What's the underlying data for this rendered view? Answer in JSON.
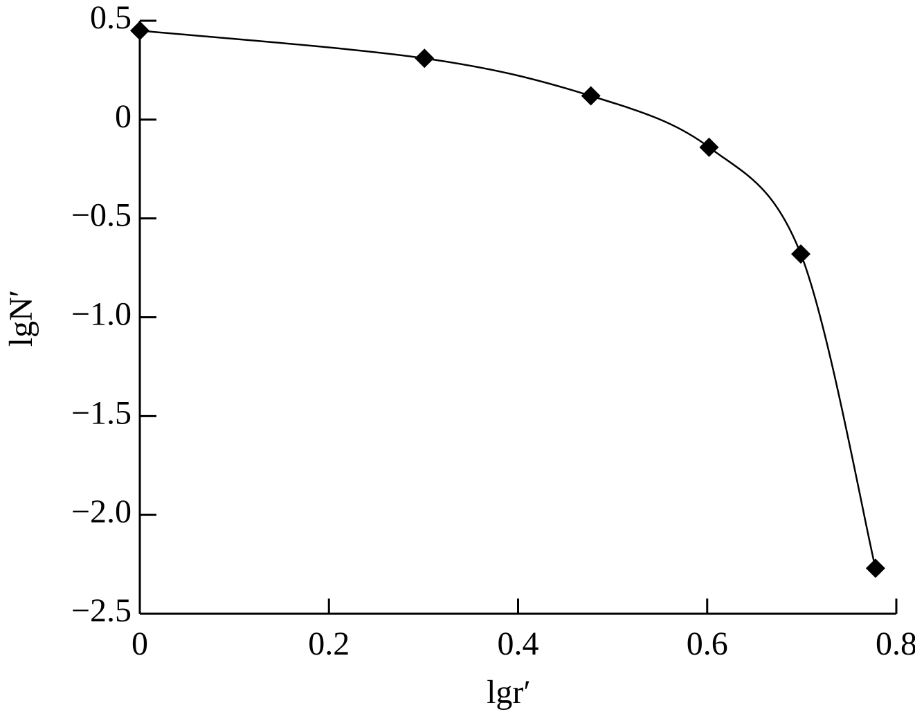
{
  "chart_data": {
    "type": "line",
    "x_label": "lgr′",
    "y_label": "lgN′",
    "series": [
      {
        "color": "#000000",
        "x": [
          0,
          0.301,
          0.477,
          0.602,
          0.699,
          0.778
        ],
        "values": [
          0.45,
          0.31,
          0.12,
          -0.14,
          -0.68,
          -2.27
        ]
      }
    ],
    "xlim": [
      0,
      0.8
    ],
    "ylim": [
      -2.5,
      0.5
    ],
    "xticks": [
      0,
      0.2,
      0.4,
      0.6,
      0.8
    ],
    "yticks": [
      {
        "value": -2.5,
        "label": "−2.5"
      },
      {
        "value": -2.0,
        "label": "−2.0"
      },
      {
        "value": -1.5,
        "label": "−1.5"
      },
      {
        "value": -1.0,
        "label": "−1.0"
      },
      {
        "value": -0.5,
        "label": "−0.5"
      },
      0,
      0.5
    ]
  }
}
